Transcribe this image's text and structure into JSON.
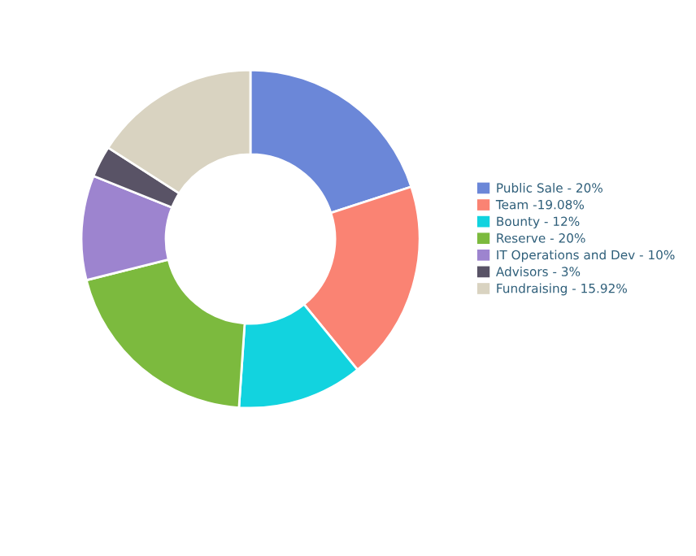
{
  "chart_data": {
    "type": "donut",
    "categories": [
      "Public Sale - 20%",
      "Team -19.08%",
      "Bounty - 12%",
      "Reserve - 20%",
      "IT Operations and Dev - 10%",
      "Advisors - 3%",
      "Fundraising - 15.92%"
    ],
    "values": [
      20,
      19.08,
      12,
      20,
      10,
      3,
      15.92
    ],
    "colors": [
      "#6b87d8",
      "#fa8373",
      "#12d3df",
      "#7cba3e",
      "#9d84cf",
      "#595366",
      "#d9d3c1"
    ],
    "legend": "right"
  }
}
